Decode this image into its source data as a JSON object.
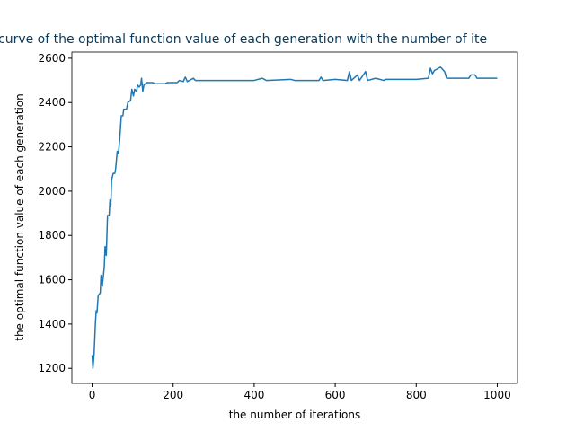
{
  "chart_data": {
    "type": "line",
    "title": "curve of the optimal function value of each generation with the number of ite",
    "xlabel": "the number of iterations",
    "ylabel": "the optimal function value of each generation",
    "x": [
      0,
      2,
      5,
      8,
      10,
      12,
      15,
      20,
      22,
      25,
      28,
      30,
      32,
      35,
      38,
      42,
      44,
      46,
      48,
      52,
      56,
      58,
      62,
      65,
      68,
      72,
      76,
      78,
      85,
      88,
      95,
      98,
      102,
      105,
      110,
      112,
      116,
      120,
      122,
      125,
      128,
      135,
      150,
      155,
      180,
      185,
      210,
      215,
      225,
      230,
      235,
      250,
      255,
      300,
      400,
      420,
      430,
      490,
      500,
      560,
      565,
      570,
      600,
      630,
      635,
      640,
      655,
      660,
      675,
      680,
      700,
      720,
      725,
      800,
      830,
      835,
      840,
      845,
      850,
      860,
      870,
      875,
      930,
      935,
      945,
      950,
      1000
    ],
    "series": [
      {
        "color": "#1f77b4",
        "values": [
          1260,
          1200,
          1270,
          1400,
          1460,
          1450,
          1530,
          1540,
          1620,
          1570,
          1620,
          1660,
          1750,
          1710,
          1890,
          1890,
          1960,
          1930,
          2050,
          2080,
          2080,
          2100,
          2180,
          2170,
          2230,
          2340,
          2340,
          2370,
          2370,
          2400,
          2410,
          2460,
          2430,
          2460,
          2450,
          2480,
          2470,
          2480,
          2510,
          2450,
          2480,
          2490,
          2490,
          2485,
          2485,
          2490,
          2490,
          2500,
          2495,
          2515,
          2495,
          2510,
          2500,
          2500,
          2500,
          2510,
          2500,
          2505,
          2500,
          2500,
          2515,
          2500,
          2505,
          2500,
          2540,
          2500,
          2525,
          2500,
          2540,
          2500,
          2510,
          2500,
          2505,
          2505,
          2510,
          2555,
          2530,
          2545,
          2550,
          2560,
          2540,
          2510,
          2510,
          2525,
          2525,
          2510,
          2510
        ]
      }
    ],
    "xlim": [
      -50,
      1050
    ],
    "ylim": [
      1132,
      2628
    ],
    "xticks": [
      0,
      200,
      400,
      600,
      800,
      1000
    ],
    "yticks": [
      1200,
      1400,
      1600,
      1800,
      2000,
      2200,
      2400,
      2600
    ]
  }
}
